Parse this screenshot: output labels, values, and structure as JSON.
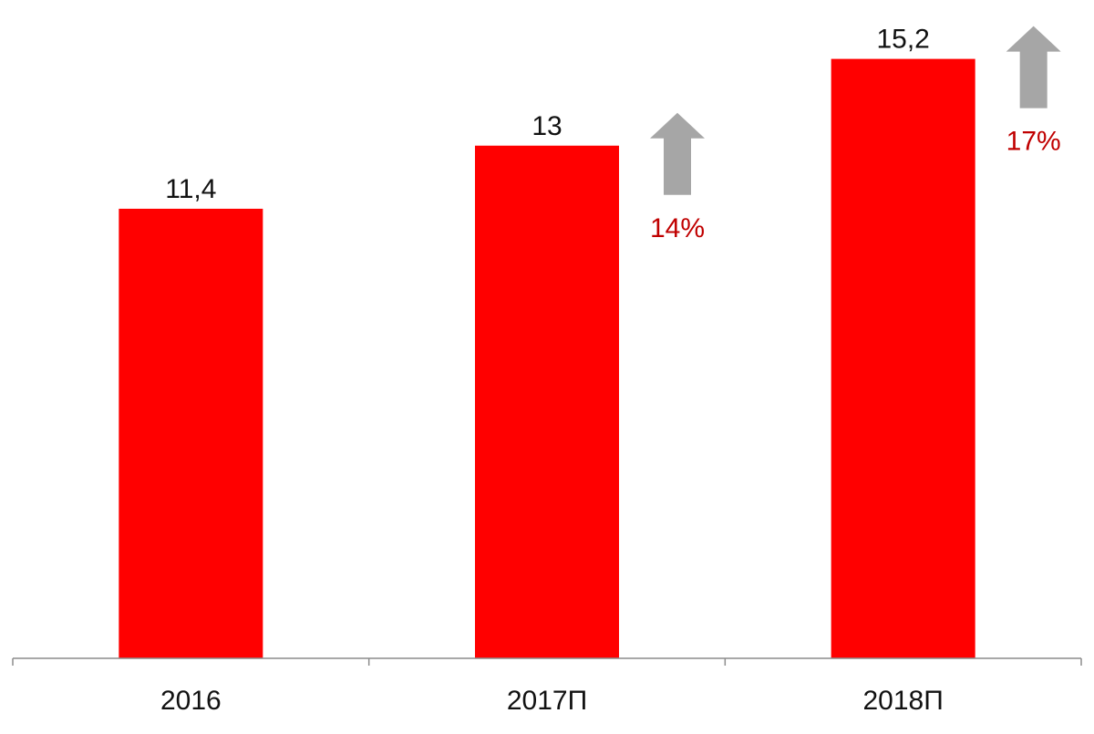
{
  "colors": {
    "bar": "#ff0000",
    "arrow": "#a6a6a6",
    "growth_text": "#c00000",
    "axis": "#8c8c8c",
    "text": "#111111"
  },
  "chart_data": {
    "type": "bar",
    "title": "",
    "xlabel": "",
    "ylabel": "",
    "categories": [
      "2016",
      "2017П",
      "2018П"
    ],
    "values": [
      11.4,
      13,
      15.2
    ],
    "data_labels": [
      "11,4",
      "13",
      "15,2"
    ],
    "ylim": [
      0,
      16.0
    ],
    "grid": false,
    "legend": "none",
    "annotations": [
      {
        "category": "2017П",
        "icon": "up-arrow-icon",
        "text": "14%"
      },
      {
        "category": "2018П",
        "icon": "up-arrow-icon",
        "text": "17%"
      }
    ]
  }
}
